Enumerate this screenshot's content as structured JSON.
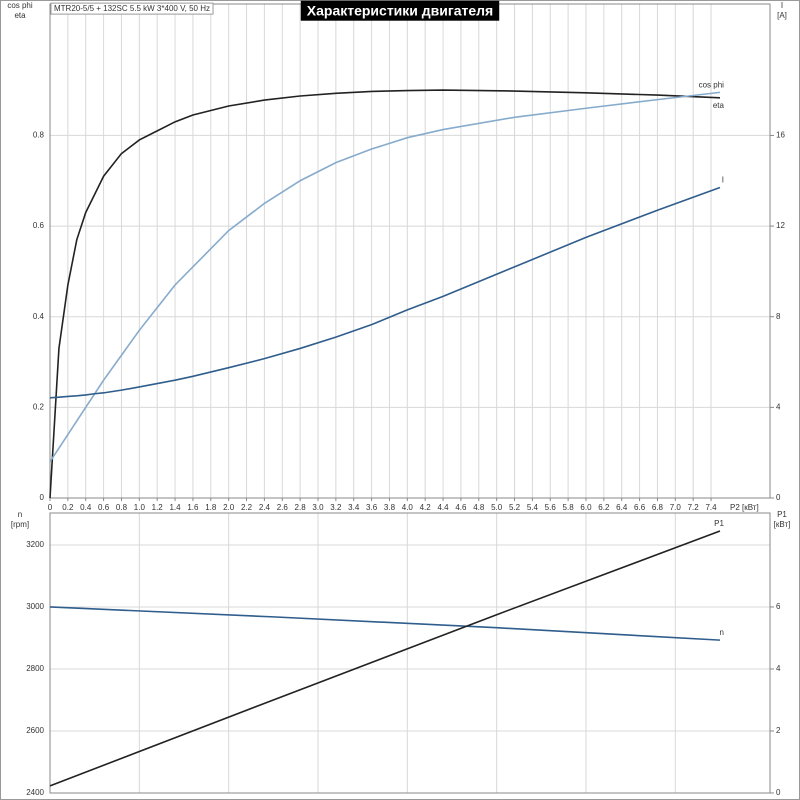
{
  "chart_data": [
    {
      "type": "line",
      "title": "Характеристики двигателя",
      "subtitle": "MTR20-5/5 + 132SC  5.5 kW  3*400 V, 50 Hz",
      "x": [
        0,
        0.1,
        0.2,
        0.3,
        0.4,
        0.5,
        0.6,
        0.8,
        1.0,
        1.2,
        1.4,
        1.6,
        2.0,
        2.4,
        2.8,
        3.2,
        3.6,
        4.0,
        4.4,
        5.2,
        6.0,
        6.8,
        7.5
      ],
      "xlim": [
        0,
        8.06
      ],
      "xticks": [
        0,
        0.2,
        0.4,
        0.6,
        0.8,
        {
          "value": 1,
          "label": "1.0"
        },
        1.2,
        1.4,
        1.6,
        1.8,
        {
          "value": 2,
          "label": "2.0"
        },
        2.2,
        2.4,
        2.6,
        2.8,
        {
          "value": 3,
          "label": "3.0"
        },
        3.2,
        3.4,
        3.6,
        3.8,
        {
          "value": 4,
          "label": "4.0"
        },
        4.2,
        4.4,
        4.6,
        4.8,
        {
          "value": 5,
          "label": "5.0"
        },
        5.2,
        5.4,
        5.6,
        5.8,
        {
          "value": 6,
          "label": "6.0"
        },
        6.2,
        6.4,
        6.6,
        6.8,
        {
          "value": 7,
          "label": "7.0"
        },
        7.2,
        7.4
      ],
      "xlabel": "P2 [кВт]",
      "ylabel": [
        "cos phi",
        "eta"
      ],
      "ylim": [
        0,
        1.09
      ],
      "yticks": [
        0,
        0.2,
        0.4,
        0.6,
        0.8
      ],
      "y2label": [
        "I",
        "[A]"
      ],
      "y2lim": [
        0,
        21.8
      ],
      "y2ticks": [
        0,
        4,
        8,
        12,
        16
      ],
      "grid": true,
      "series": [
        {
          "name": "eta",
          "color": "#222222",
          "values": [
            0,
            0.33,
            0.47,
            0.57,
            0.63,
            0.67,
            0.71,
            0.76,
            0.79,
            0.81,
            0.83,
            0.845,
            0.865,
            0.878,
            0.887,
            0.893,
            0.897,
            0.899,
            0.9,
            0.898,
            0.894,
            0.889,
            0.883
          ]
        },
        {
          "name": "cos phi",
          "color": "#86abcc",
          "values": [
            0.08,
            0.11,
            0.14,
            0.17,
            0.2,
            0.23,
            0.26,
            0.315,
            0.37,
            0.42,
            0.47,
            0.51,
            0.59,
            0.65,
            0.7,
            0.74,
            0.77,
            0.795,
            0.813,
            0.84,
            0.86,
            0.879,
            0.895
          ]
        },
        {
          "name": "I",
          "color": "#2f5d8c",
          "axis": "y2",
          "values": [
            4.42,
            4.45,
            4.48,
            4.51,
            4.55,
            4.6,
            4.64,
            4.76,
            4.9,
            5.05,
            5.2,
            5.37,
            5.75,
            6.15,
            6.6,
            7.1,
            7.65,
            8.3,
            8.9,
            10.2,
            11.5,
            12.7,
            13.7
          ]
        }
      ]
    },
    {
      "type": "line",
      "x": [
        0,
        2.5,
        5,
        7.5
      ],
      "xlim": [
        0,
        8.06
      ],
      "xgrid": [
        1,
        2,
        3,
        4,
        5,
        6,
        7
      ],
      "ylabel": [
        "n",
        "[rpm]"
      ],
      "ylim": [
        2400,
        3303
      ],
      "yticks": [
        2400,
        2600,
        2800,
        3000,
        3200
      ],
      "y2label": [
        "P1",
        "[кВт]"
      ],
      "y2lim": [
        0,
        9.03
      ],
      "y2ticks": [
        0,
        2,
        4,
        6
      ],
      "grid": true,
      "series": [
        {
          "name": "n",
          "color": "#2f5d8c",
          "values": [
            3000,
            2968,
            2933,
            2893
          ]
        },
        {
          "name": "P1",
          "color": "#222222",
          "axis": "y2",
          "values": [
            0.23,
            3.0,
            5.75,
            8.45
          ]
        }
      ]
    }
  ]
}
